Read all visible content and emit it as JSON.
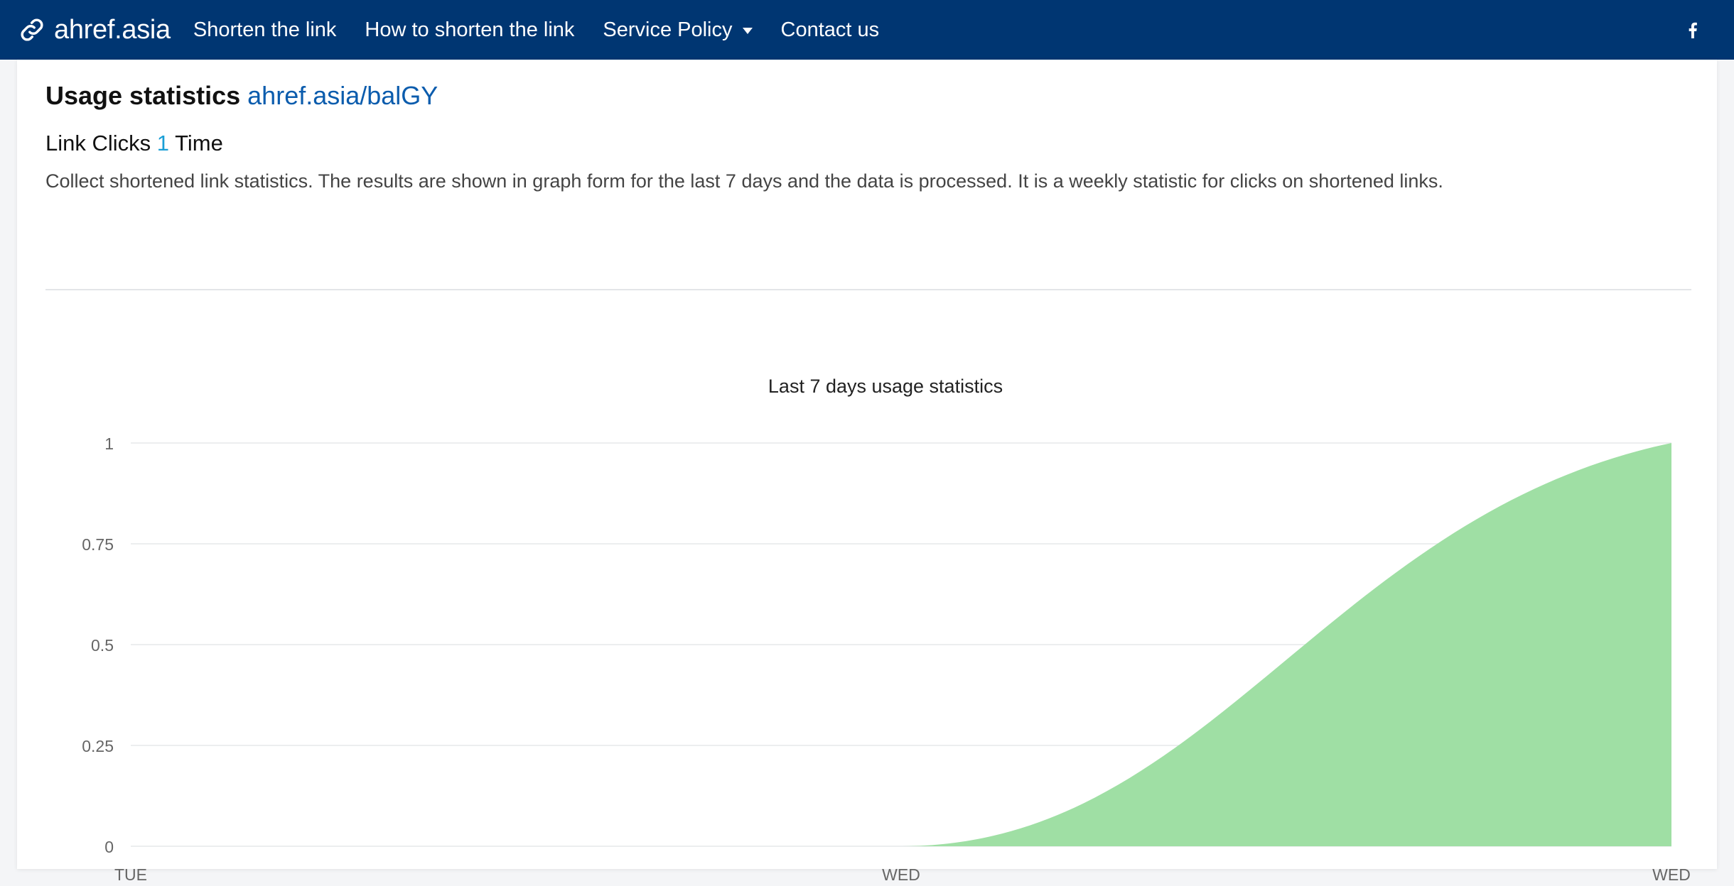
{
  "nav": {
    "brand": "ahref.asia",
    "items": [
      {
        "label": "Shorten the link"
      },
      {
        "label": "How to shorten the link"
      },
      {
        "label": "Service Policy"
      },
      {
        "label": "Contact us"
      }
    ]
  },
  "main": {
    "title": "Usage statistics",
    "link": "ahref.asia/balGY",
    "clicks_prefix": "Link Clicks",
    "clicks_count": "1",
    "clicks_suffix": "Time",
    "description": "Collect shortened link statistics. The results are shown in graph form for the last 7 days and the data is processed. It is a weekly statistic for clicks on shortened links."
  },
  "colors": {
    "navbar": "#003672",
    "link": "#0b5cad",
    "count": "#1a9fd6",
    "area_fill": "#9fdfa4"
  },
  "chart_data": {
    "type": "area",
    "title": "Last 7 days usage statistics",
    "categories": [
      "TUE",
      "WED",
      "WED"
    ],
    "values": [
      0,
      0,
      1
    ],
    "ylim": [
      0,
      1
    ],
    "yticks": [
      "0",
      "0.25",
      "0.5",
      "0.75",
      "1"
    ],
    "grid": true,
    "legend": "none"
  }
}
